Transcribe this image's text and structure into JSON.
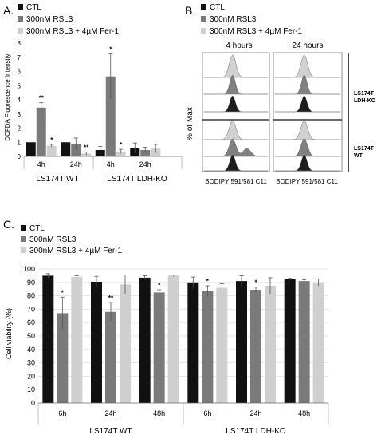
{
  "colors": {
    "ctl": "#111111",
    "rsl3": "#7a7a7a",
    "fer1": "#cfcfcf",
    "axis": "#666666",
    "grid": "#dddddd"
  },
  "legend": [
    "CTL",
    "300nM RSL3",
    "300nM RSL3 + 4µM Fer-1"
  ],
  "chart_data": [
    {
      "panel": "A.",
      "type": "bar",
      "ylabel": "DCFDA Fluorescence Intensity",
      "ylim": [
        0,
        8
      ],
      "yticks": [
        "0",
        "1",
        "2",
        "3",
        "4",
        "5",
        "6",
        "7",
        "8"
      ],
      "groups": [
        "LS174T WT",
        "LS174T LDH-KO"
      ],
      "categories": [
        "4h",
        "24h",
        "4h",
        "24h"
      ],
      "series": [
        {
          "name": "CTL",
          "values": [
            1.0,
            1.0,
            0.45,
            0.6
          ],
          "errors": [
            0.0,
            0.0,
            0.25,
            0.35
          ]
        },
        {
          "name": "300nM RSL3",
          "values": [
            3.45,
            0.9,
            5.65,
            0.45
          ],
          "errors": [
            0.35,
            0.4,
            1.6,
            0.2
          ]
        },
        {
          "name": "300nM RSL3 + 4µM Fer-1",
          "values": [
            0.75,
            0.2,
            0.35,
            0.55
          ],
          "errors": [
            0.1,
            0.1,
            0.15,
            0.3
          ]
        }
      ],
      "annotations": [
        [
          "",
          "**",
          "*"
        ],
        [
          "",
          "",
          "**"
        ],
        [
          "",
          "*",
          "*"
        ],
        [
          "",
          "",
          ""
        ]
      ]
    },
    {
      "panel": "B.",
      "type": "histogram",
      "columns": [
        "4 hours",
        "24 hours"
      ],
      "row_groups": [
        "LS174T LDH-KO",
        "LS174T WT"
      ],
      "ylabel": "% of Max",
      "xlabel": "BODIPY 591/581 C11"
    },
    {
      "panel": "C.",
      "type": "bar",
      "ylabel": "Cell viability (%)",
      "ylim": [
        0,
        100
      ],
      "yticks": [
        "0",
        "10",
        "20",
        "30",
        "40",
        "50",
        "60",
        "70",
        "80",
        "90",
        "100"
      ],
      "grid": true,
      "groups": [
        "LS174T WT",
        "LS174T LDH-KO"
      ],
      "categories": [
        "6h",
        "24h",
        "48h",
        "6h",
        "24h",
        "48h"
      ],
      "series": [
        {
          "name": "CTL",
          "values": [
            95,
            90.5,
            93.5,
            90,
            91,
            92.5
          ],
          "errors": [
            1.5,
            4,
            1.5,
            4,
            4,
            0.5
          ]
        },
        {
          "name": "300nM RSL3",
          "values": [
            67,
            68,
            82.5,
            83.5,
            84.5,
            91
          ],
          "errors": [
            12,
            7,
            2,
            4,
            2,
            1
          ]
        },
        {
          "name": "300nM RSL3 + 4µM Fer-1",
          "values": [
            94,
            88.5,
            95,
            86,
            87.5,
            90
          ],
          "errors": [
            1,
            7,
            0.5,
            3,
            6,
            2.5
          ]
        }
      ],
      "annotations": [
        [
          "",
          "*",
          ""
        ],
        [
          "",
          "**",
          ""
        ],
        [
          "",
          "*",
          ""
        ],
        [
          "",
          "*",
          ""
        ],
        [
          "",
          "*",
          ""
        ],
        [
          "",
          "",
          ""
        ]
      ]
    }
  ]
}
